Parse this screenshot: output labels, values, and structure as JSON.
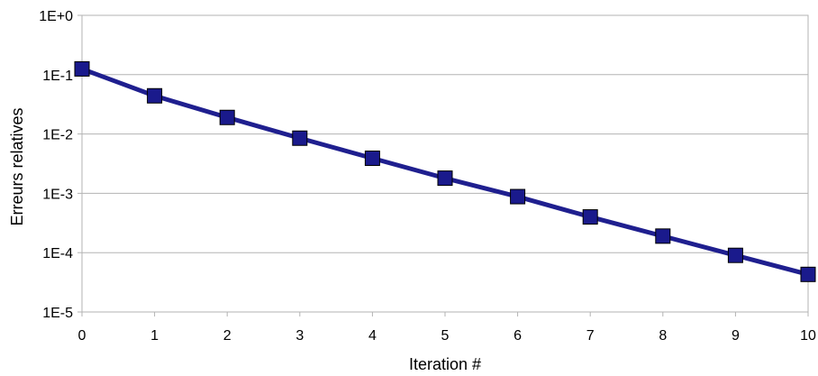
{
  "chart_data": {
    "type": "line",
    "title": "",
    "xlabel": "Iteration #",
    "ylabel": "Erreurs relatives",
    "yscale": "log",
    "ylim": [
      1e-05,
      1
    ],
    "xlim": [
      0,
      10
    ],
    "grid": true,
    "legend": "none",
    "x": [
      0,
      1,
      2,
      3,
      4,
      5,
      6,
      7,
      8,
      9,
      10
    ],
    "x_tick_labels": [
      "0",
      "1",
      "2",
      "3",
      "4",
      "5",
      "6",
      "7",
      "8",
      "9",
      "10"
    ],
    "y_ticks": [
      1,
      0.1,
      0.01,
      0.001,
      0.0001,
      1e-05
    ],
    "y_tick_labels": [
      "1E+0",
      "1E-1",
      "1E-2",
      "1E-3",
      "1E-4",
      "1E-5"
    ],
    "series": [
      {
        "values": [
          0.125,
          0.044,
          0.019,
          0.0085,
          0.0039,
          0.0018,
          0.00088,
          0.0004,
          0.00019,
          9e-05,
          4.3e-05
        ],
        "color": "#1f1f8f",
        "marker": "square",
        "marker_color": "#1a1a8c"
      }
    ]
  }
}
